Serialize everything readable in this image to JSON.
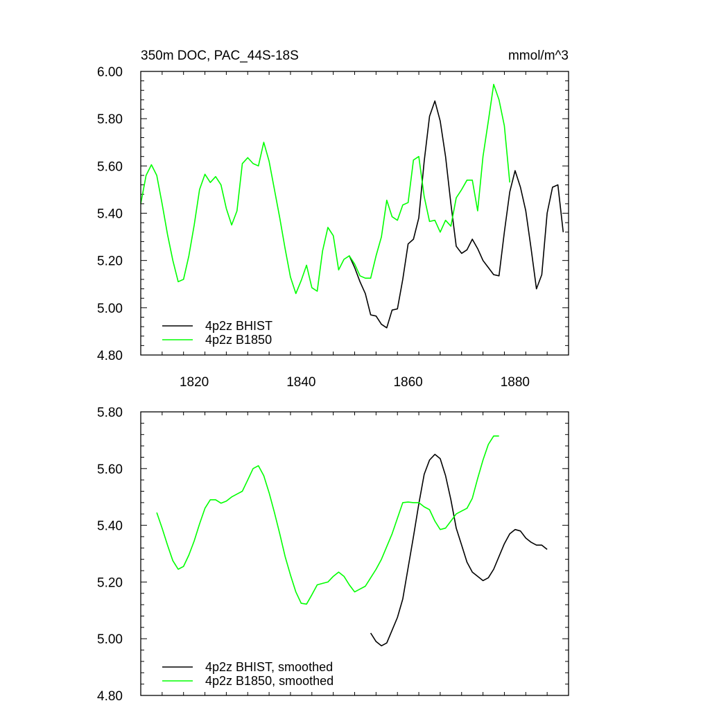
{
  "chart_data": [
    {
      "type": "line",
      "title_left": "350m DOC, PAC_44S-18S",
      "title_right": "mmol/m^3",
      "xlabel": "",
      "ylabel": "",
      "xlim": [
        1810,
        1890
      ],
      "ylim": [
        4.8,
        6.0
      ],
      "x_ticks": [
        1820,
        1840,
        1860,
        1880
      ],
      "x_tick_labels": [
        "1820",
        "1840",
        "1860",
        "1880"
      ],
      "y_ticks": [
        4.8,
        5.0,
        5.2,
        5.4,
        5.6,
        5.8,
        6.0
      ],
      "y_tick_labels": [
        "4.80",
        "5.00",
        "5.20",
        "5.40",
        "5.60",
        "5.80",
        "6.00"
      ],
      "grid": false,
      "legend": "bottom-left",
      "series": [
        {
          "name": "4p2z BHIST",
          "color": "#000000",
          "x": [
            1849,
            1850,
            1851,
            1852,
            1853,
            1854,
            1855,
            1856,
            1857,
            1858,
            1859,
            1860,
            1861,
            1862,
            1863,
            1864,
            1865,
            1866,
            1867,
            1868,
            1869,
            1870,
            1871,
            1872,
            1873,
            1874,
            1875,
            1876,
            1877,
            1878,
            1879,
            1880,
            1881,
            1882,
            1883,
            1884,
            1885,
            1886,
            1887,
            1888,
            1889
          ],
          "y": [
            5.22,
            5.17,
            5.11,
            5.06,
            4.97,
            4.965,
            4.93,
            4.915,
            4.99,
            4.995,
            5.12,
            5.27,
            5.29,
            5.38,
            5.62,
            5.81,
            5.875,
            5.79,
            5.64,
            5.44,
            5.26,
            5.23,
            5.245,
            5.29,
            5.25,
            5.2,
            5.17,
            5.14,
            5.135,
            5.32,
            5.49,
            5.58,
            5.51,
            5.41,
            5.25,
            5.08,
            5.14,
            5.4,
            5.51,
            5.52,
            5.32
          ]
        },
        {
          "name": "4p2z B1850",
          "color": "#00ff00",
          "x": [
            1810,
            1811,
            1812,
            1813,
            1814,
            1815,
            1816,
            1817,
            1818,
            1819,
            1820,
            1821,
            1822,
            1823,
            1824,
            1825,
            1826,
            1827,
            1828,
            1829,
            1830,
            1831,
            1832,
            1833,
            1834,
            1835,
            1836,
            1837,
            1838,
            1839,
            1840,
            1841,
            1842,
            1843,
            1844,
            1845,
            1846,
            1847,
            1848,
            1849,
            1850,
            1851,
            1852,
            1853,
            1854,
            1855,
            1856,
            1857,
            1858,
            1859,
            1860,
            1861,
            1862,
            1863,
            1864,
            1865,
            1866,
            1867,
            1868,
            1869,
            1870,
            1871,
            1872,
            1873,
            1874,
            1875,
            1876,
            1877,
            1878,
            1879
          ],
          "y": [
            5.44,
            5.56,
            5.605,
            5.56,
            5.44,
            5.31,
            5.2,
            5.11,
            5.12,
            5.22,
            5.35,
            5.5,
            5.565,
            5.53,
            5.555,
            5.52,
            5.42,
            5.35,
            5.41,
            5.61,
            5.635,
            5.61,
            5.6,
            5.7,
            5.62,
            5.5,
            5.38,
            5.25,
            5.13,
            5.06,
            5.115,
            5.18,
            5.085,
            5.07,
            5.24,
            5.34,
            5.305,
            5.16,
            5.205,
            5.22,
            5.185,
            5.135,
            5.125,
            5.125,
            5.22,
            5.3,
            5.455,
            5.385,
            5.37,
            5.435,
            5.445,
            5.625,
            5.64,
            5.47,
            5.365,
            5.37,
            5.32,
            5.37,
            5.345,
            5.465,
            5.5,
            5.54,
            5.54,
            5.41,
            5.64,
            5.79,
            5.945,
            5.88,
            5.77,
            5.53
          ]
        }
      ]
    },
    {
      "type": "line",
      "xlabel": "",
      "ylabel": "",
      "xlim": [
        1810,
        1890
      ],
      "ylim": [
        4.8,
        5.8
      ],
      "x_ticks": [
        1820,
        1840,
        1860,
        1880
      ],
      "x_tick_labels": [],
      "y_ticks": [
        4.8,
        5.0,
        5.2,
        5.4,
        5.6,
        5.8
      ],
      "y_tick_labels": [
        "4.80",
        "5.00",
        "5.20",
        "5.40",
        "5.60",
        "5.80"
      ],
      "grid": false,
      "legend": "bottom-left",
      "series": [
        {
          "name": "4p2z BHIST, smoothed",
          "color": "#000000",
          "x": [
            1853,
            1854,
            1855,
            1856,
            1857,
            1858,
            1859,
            1860,
            1861,
            1862,
            1863,
            1864,
            1865,
            1866,
            1867,
            1868,
            1869,
            1870,
            1871,
            1872,
            1873,
            1874,
            1875,
            1876,
            1877,
            1878,
            1879,
            1880,
            1881,
            1882,
            1883,
            1884,
            1885,
            1886
          ],
          "y": [
            5.02,
            4.99,
            4.975,
            4.985,
            5.03,
            5.075,
            5.14,
            5.25,
            5.36,
            5.475,
            5.58,
            5.63,
            5.65,
            5.635,
            5.575,
            5.49,
            5.39,
            5.33,
            5.27,
            5.235,
            5.22,
            5.205,
            5.215,
            5.245,
            5.29,
            5.335,
            5.37,
            5.385,
            5.38,
            5.355,
            5.34,
            5.33,
            5.33,
            5.315
          ]
        },
        {
          "name": "4p2z B1850, smoothed",
          "color": "#00ff00",
          "x": [
            1813,
            1814,
            1815,
            1816,
            1817,
            1818,
            1819,
            1820,
            1821,
            1822,
            1823,
            1824,
            1825,
            1826,
            1827,
            1828,
            1829,
            1830,
            1831,
            1832,
            1833,
            1834,
            1835,
            1836,
            1837,
            1838,
            1839,
            1840,
            1841,
            1842,
            1843,
            1844,
            1845,
            1846,
            1847,
            1848,
            1849,
            1850,
            1851,
            1852,
            1853,
            1854,
            1855,
            1856,
            1857,
            1858,
            1859,
            1860,
            1861,
            1862,
            1863,
            1864,
            1865,
            1866,
            1867,
            1868,
            1869,
            1870,
            1871,
            1872,
            1873,
            1874,
            1875,
            1876,
            1877
          ],
          "y": [
            5.445,
            5.39,
            5.33,
            5.275,
            5.245,
            5.255,
            5.295,
            5.345,
            5.405,
            5.46,
            5.49,
            5.49,
            5.478,
            5.485,
            5.5,
            5.51,
            5.52,
            5.56,
            5.6,
            5.61,
            5.575,
            5.515,
            5.445,
            5.37,
            5.29,
            5.225,
            5.165,
            5.125,
            5.122,
            5.155,
            5.19,
            5.195,
            5.2,
            5.22,
            5.235,
            5.22,
            5.19,
            5.165,
            5.175,
            5.185,
            5.215,
            5.245,
            5.28,
            5.325,
            5.37,
            5.425,
            5.48,
            5.482,
            5.48,
            5.48,
            5.465,
            5.455,
            5.415,
            5.385,
            5.39,
            5.415,
            5.44,
            5.45,
            5.46,
            5.495,
            5.565,
            5.63,
            5.685,
            5.715,
            5.715
          ]
        }
      ]
    }
  ]
}
